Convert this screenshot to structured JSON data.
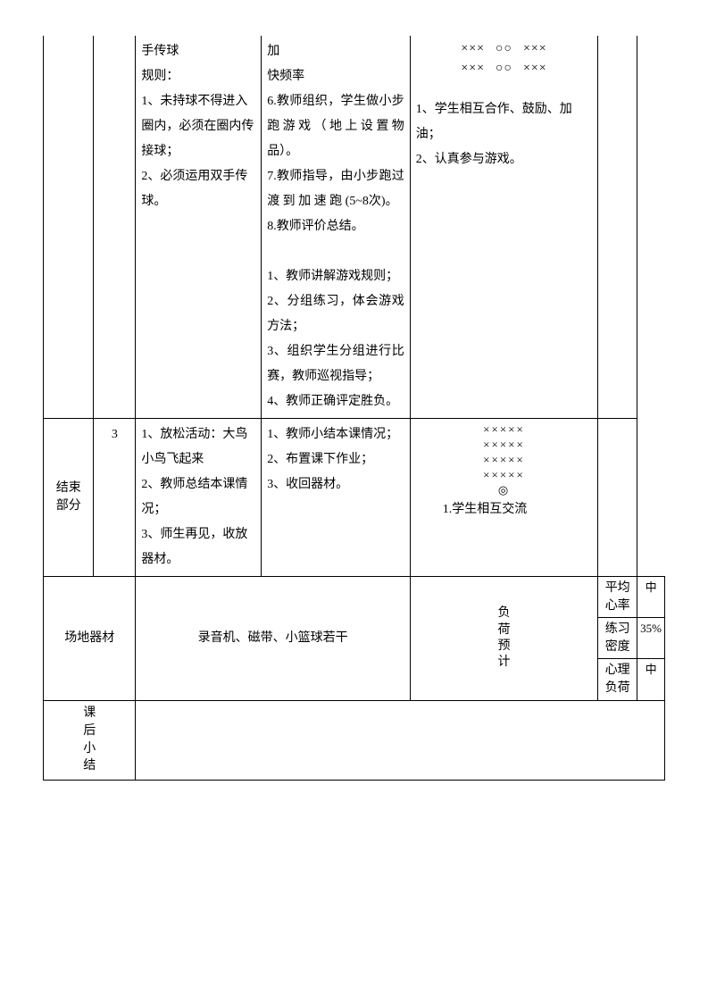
{
  "row1": {
    "colA": "手传球\n规则：\n1、未持球不得进入圈内，必须在圈内传接球；\n2、必须运用双手传球。",
    "colB": "加\n快频率\n6.教师组织，学生做小步跑游戏（地上设置物品）。\n7.教师指导，由小步跑过 渡 到 加 速 跑 (5~8次)。\n8.教师评价总结。\n\n1、教师讲解游戏规则；\n2、分组练习，体会游戏方法；\n3、组织学生分组进行比赛，教师巡视指导；\n4、教师正确评定胜负。",
    "colC_diag_line1_a": "×××",
    "colC_diag_line1_b": "○○",
    "colC_diag_line1_c": "×××",
    "colC_diag_line2_a": "×××",
    "colC_diag_line2_b": "○○",
    "colC_diag_line2_c": "×××",
    "colC_text": "1、学生相互合作、鼓励、加油；\n2、认真参与游戏。"
  },
  "row2": {
    "label_l1": "结束",
    "label_l2": "部分",
    "time": "3",
    "colA": "1、放松活动：大鸟小鸟飞起来\n2、教师总结本课情况；\n3、师生再见，收放器材。",
    "colB": "1、教师小结本课情况；\n2、布置课下作业；\n3、收回器材。",
    "colC_d1": "×××××",
    "colC_d2": "×××××",
    "colC_d3": "×××××",
    "colC_d4": "×××××",
    "colC_d5": "◎",
    "colC_text": "1.学生相互交流"
  },
  "row3": {
    "equip_label": "场地器材",
    "equip_value": "录音机、磁带、小篮球若干",
    "load_label": "负荷预计",
    "r1_label": "平均心率",
    "r1_value": "中",
    "r2_label": "练习密度",
    "r2_value": "35%",
    "r3_label": "心理负荷",
    "r3_value": "中"
  },
  "row4": {
    "label": "课后小结"
  }
}
